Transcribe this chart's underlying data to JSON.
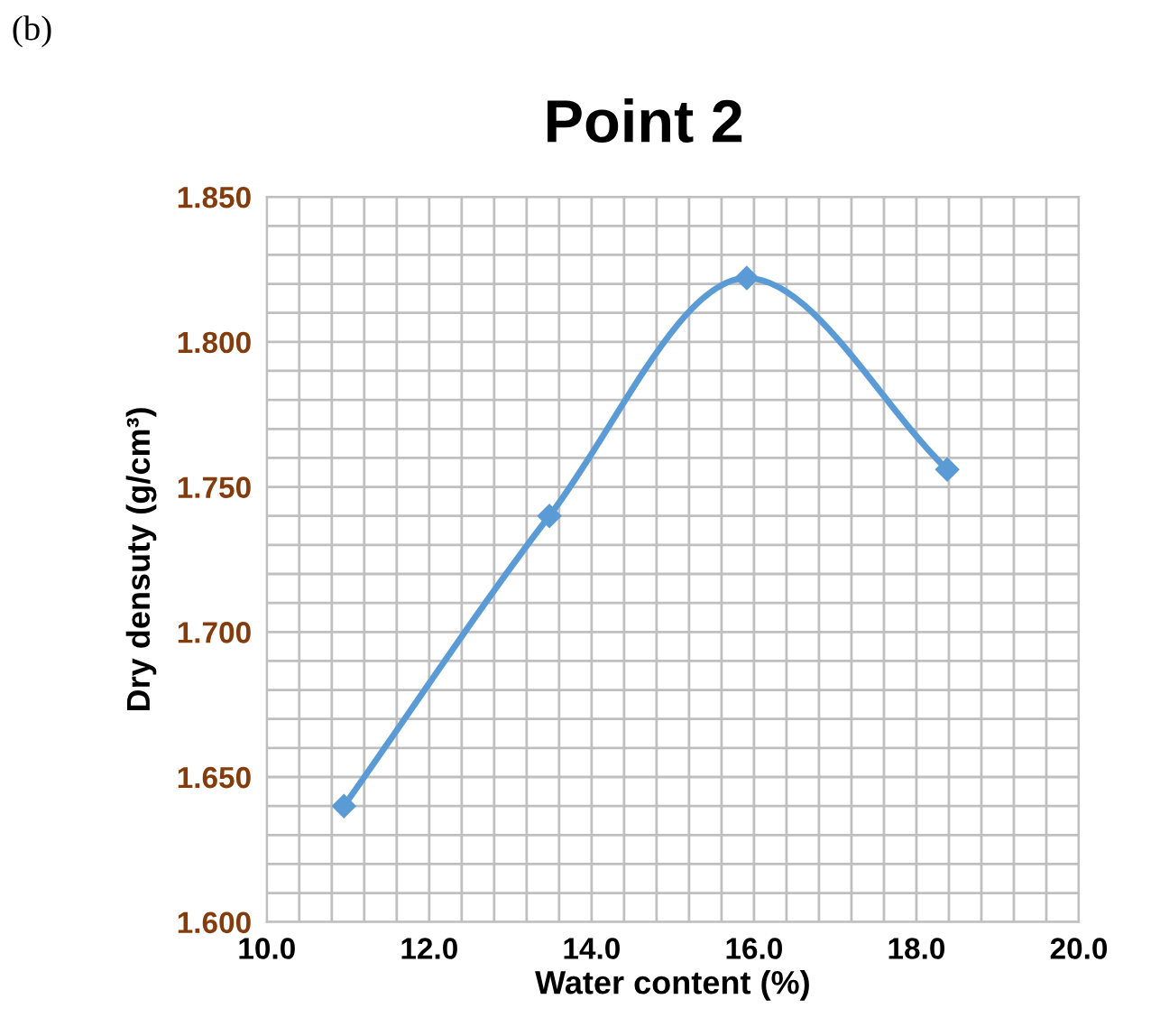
{
  "chart_data": {
    "type": "line",
    "title": "Point 2",
    "xlabel": "Water content (%)",
    "ylabel": "Dry densuty (g/cm³)",
    "annotations": [
      "(b)"
    ],
    "x": [
      10.95,
      13.48,
      15.91,
      18.38
    ],
    "series": [
      {
        "color": "#5b9bd5",
        "values": [
          1.64,
          1.74,
          1.822,
          1.756
        ]
      }
    ],
    "xlim": [
      10.0,
      20.0
    ],
    "ylim": [
      1.6,
      1.85
    ],
    "xticks": [
      {
        "value": 10,
        "label": "10.0"
      },
      {
        "value": 12,
        "label": "12.0"
      },
      {
        "value": 14,
        "label": "14.0"
      },
      {
        "value": 16,
        "label": "16.0"
      },
      {
        "value": 18,
        "label": "18.0"
      },
      {
        "value": 20,
        "label": "20.0"
      }
    ],
    "yticks": [
      {
        "value": 1.6,
        "label": "1.600"
      },
      {
        "value": 1.65,
        "label": "1.650"
      },
      {
        "value": 1.7,
        "label": "1.700"
      },
      {
        "value": 1.75,
        "label": "1.750"
      },
      {
        "value": 1.8,
        "label": "1.800"
      },
      {
        "value": 1.85,
        "label": "1.850"
      }
    ],
    "grid": true,
    "marker": "diamond",
    "line_style": "solid",
    "legend": false
  }
}
